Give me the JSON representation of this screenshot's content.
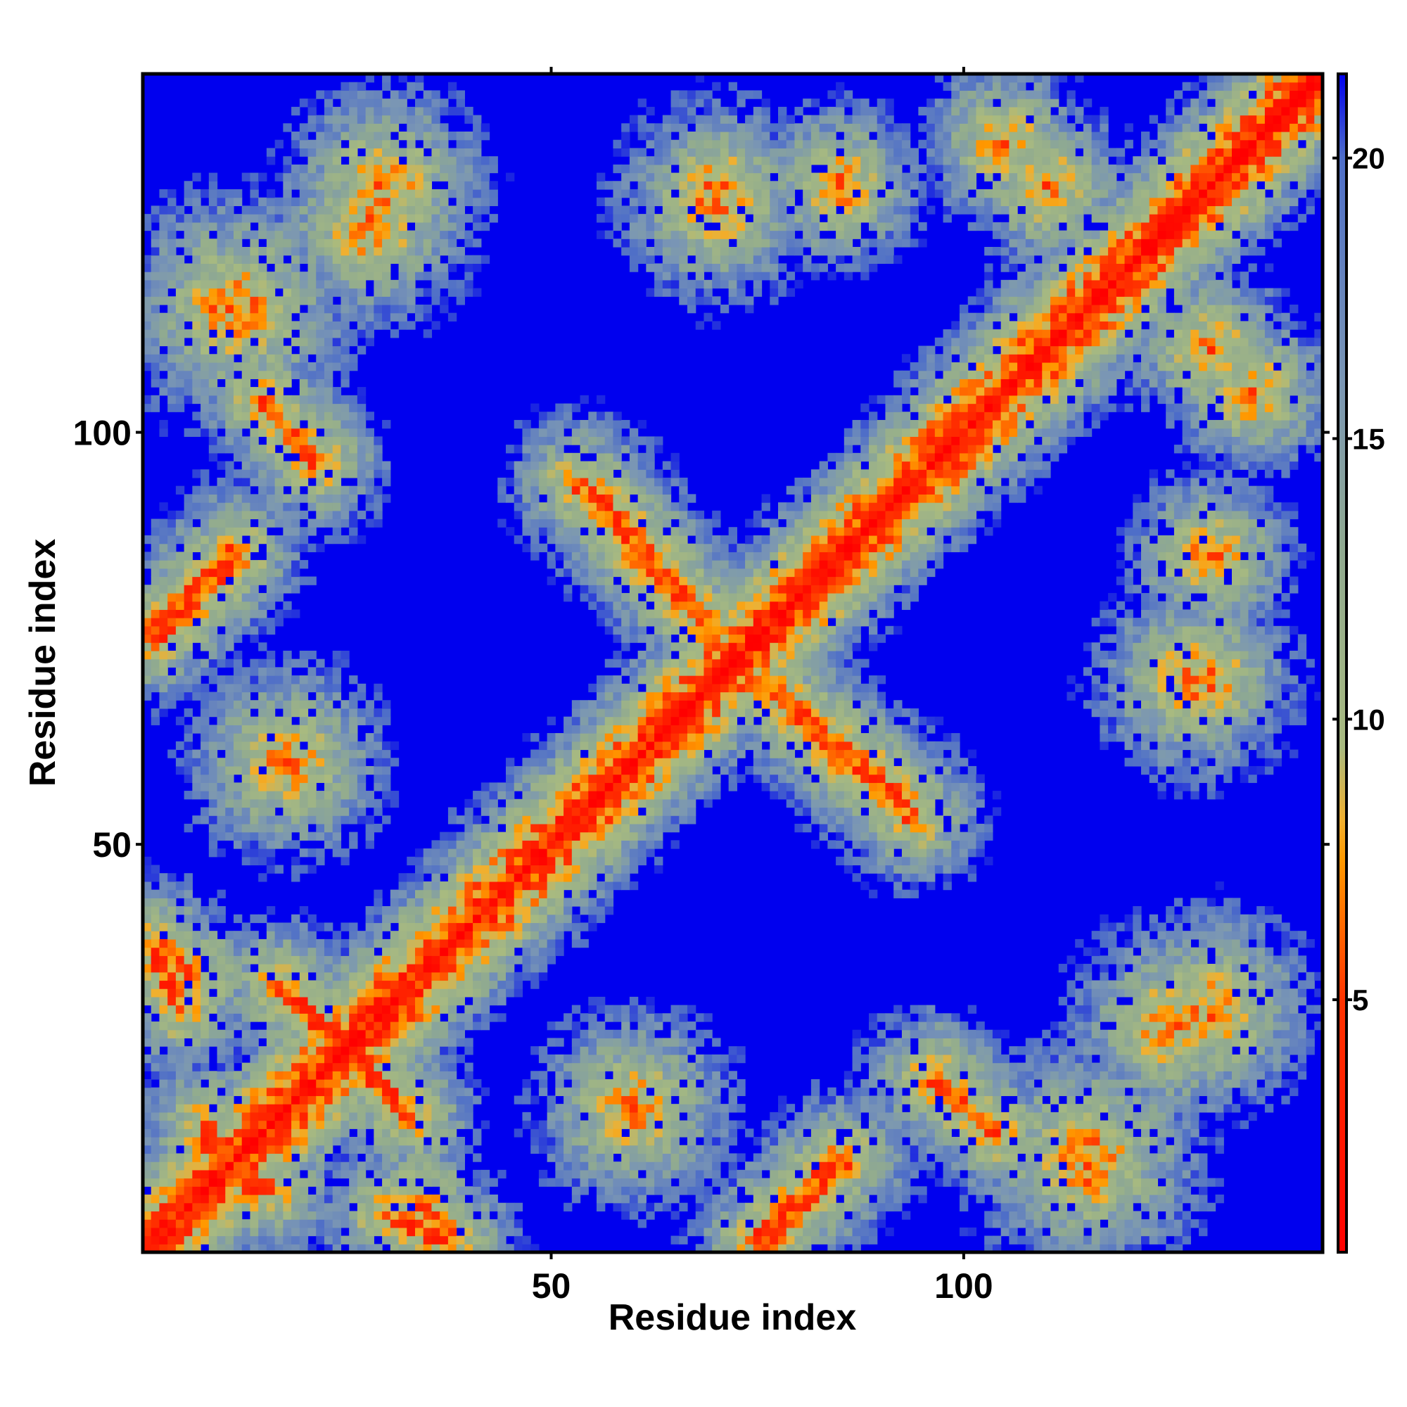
{
  "chart_data": {
    "type": "heatmap",
    "title": "",
    "xlabel": "Residue index",
    "ylabel": "Residue index",
    "residue_count": 143,
    "xlim": [
      1,
      143
    ],
    "ylim": [
      1,
      143
    ],
    "x_ticks": [
      50,
      100
    ],
    "y_ticks": [
      50,
      100
    ],
    "colorbar": {
      "range": [
        0.5,
        21.5
      ],
      "ticks": [
        5,
        10,
        15,
        20
      ],
      "stops": [
        {
          "value": 0.5,
          "color": "#ff0000"
        },
        {
          "value": 5.0,
          "color": "#ff3300"
        },
        {
          "value": 7.5,
          "color": "#ff9900"
        },
        {
          "value": 8.2,
          "color": "#f0b030"
        },
        {
          "value": 9.5,
          "color": "#a8ba80"
        },
        {
          "value": 13.0,
          "color": "#90aa90"
        },
        {
          "value": 16.0,
          "color": "#7a96b4"
        },
        {
          "value": 20.0,
          "color": "#4e6ec8"
        },
        {
          "value": 21.5,
          "color": "#0000ee"
        }
      ]
    },
    "no_contact_color": "#0000ee",
    "grid": false,
    "legend": "colorbar-right",
    "value_meaning": "inter-residue distance (contact map), symmetric matrix",
    "contact_features": [
      {
        "kind": "diagonal",
        "from": [
          1,
          1
        ],
        "to": [
          143,
          143
        ]
      },
      {
        "kind": "antiparallel",
        "from": [
          15,
          104
        ],
        "to": [
          22,
          96
        ]
      },
      {
        "kind": "antiparallel",
        "from": [
          53,
          94
        ],
        "to": [
          70,
          75
        ]
      },
      {
        "kind": "antiparallel",
        "from": [
          75,
          70
        ],
        "to": [
          93,
          55
        ]
      },
      {
        "kind": "antiparallel",
        "from": [
          2,
          75
        ],
        "to": [
          12,
          85
        ]
      },
      {
        "kind": "antiparallel",
        "from": [
          2,
          38
        ],
        "to": [
          7,
          34
        ]
      },
      {
        "kind": "antiparallel",
        "from": [
          17,
          33
        ],
        "to": [
          30,
          20
        ]
      },
      {
        "kind": "antiparallel",
        "from": [
          30,
          5
        ],
        "to": [
          37,
          2
        ]
      },
      {
        "kind": "antiparallel",
        "from": [
          75,
          1
        ],
        "to": [
          86,
          12
        ]
      },
      {
        "kind": "antiparallel",
        "from": [
          96,
          22
        ],
        "to": [
          104,
          15
        ]
      },
      {
        "kind": "parallel",
        "from": [
          8,
          14
        ],
        "to": [
          16,
          8
        ]
      },
      {
        "kind": "cluster",
        "center": [
          12,
          115
        ],
        "size": 14
      },
      {
        "kind": "cluster",
        "center": [
          30,
          130
        ],
        "size": 12
      },
      {
        "kind": "cluster",
        "center": [
          70,
          130
        ],
        "size": 10
      },
      {
        "kind": "cluster",
        "center": [
          85,
          130
        ],
        "size": 10
      },
      {
        "kind": "cluster",
        "center": [
          105,
          135
        ],
        "size": 10
      },
      {
        "kind": "cluster",
        "center": [
          130,
          110
        ],
        "size": 10
      },
      {
        "kind": "cluster",
        "center": [
          128,
          70
        ],
        "size": 12
      },
      {
        "kind": "cluster",
        "center": [
          125,
          28
        ],
        "size": 12
      },
      {
        "kind": "cluster",
        "center": [
          115,
          10
        ],
        "size": 10
      },
      {
        "kind": "cluster",
        "center": [
          60,
          18
        ],
        "size": 12
      },
      {
        "kind": "cluster",
        "center": [
          45,
          45
        ],
        "size": 10
      }
    ]
  }
}
